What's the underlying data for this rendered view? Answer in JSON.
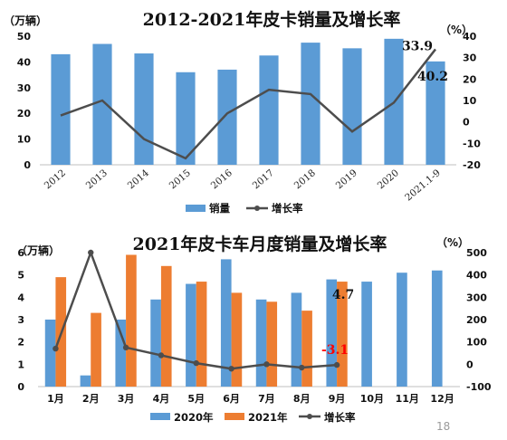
{
  "page_number": "18",
  "colors": {
    "bar_blue": "#5b9bd5",
    "bar_orange": "#ed7d31",
    "line": "#4d4d4d",
    "neg_label": "#ff0000",
    "label": "#111111"
  },
  "chart_data": [
    {
      "type": "bar",
      "title": "2012-2021年皮卡销量及增长率",
      "left_unit": "（万辆）",
      "right_unit": "（%）",
      "categories": [
        "2012",
        "2013",
        "2014",
        "2015",
        "2016",
        "2017",
        "2018",
        "2019",
        "2020",
        "2021.1-9"
      ],
      "left_ticks": [
        "0",
        "10",
        "20",
        "30",
        "40",
        "50"
      ],
      "right_ticks": [
        "-20",
        "-10",
        "0",
        "10",
        "20",
        "30",
        "40"
      ],
      "ylim_left": [
        0,
        50
      ],
      "ylim_right": [
        -20,
        40
      ],
      "series": [
        {
          "name": "销量",
          "kind": "bar",
          "axis": "left",
          "values": [
            43,
            47,
            43.3,
            36,
            37,
            42.5,
            47.5,
            45.3,
            49,
            40.2
          ]
        },
        {
          "name": "增长率",
          "kind": "line",
          "axis": "right",
          "values": [
            3,
            10,
            -8,
            -17,
            4,
            15,
            13,
            -4.5,
            9,
            33.9
          ]
        }
      ],
      "data_labels": [
        {
          "text": "33.9",
          "series": "增长率",
          "index": 9
        },
        {
          "text": "40.2",
          "series": "销量",
          "index": 9
        }
      ],
      "legend_position": "bottom"
    },
    {
      "type": "bar",
      "title": "2021年皮卡车月度销量及增长率",
      "left_unit": "（万辆）",
      "right_unit": "（%）",
      "categories": [
        "1月",
        "2月",
        "3月",
        "4月",
        "5月",
        "6月",
        "7月",
        "8月",
        "9月",
        "10月",
        "11月",
        "12月"
      ],
      "left_ticks": [
        "0",
        "1",
        "2",
        "3",
        "4",
        "5",
        "6"
      ],
      "right_ticks": [
        "-100",
        "0",
        "100",
        "200",
        "300",
        "400",
        "500"
      ],
      "ylim_left": [
        0,
        6
      ],
      "ylim_right": [
        -100,
        500
      ],
      "series": [
        {
          "name": "2020年",
          "kind": "bar",
          "axis": "left",
          "values": [
            3.0,
            0.5,
            3.0,
            3.9,
            4.6,
            5.7,
            3.9,
            4.2,
            4.8,
            4.7,
            5.1,
            5.2
          ]
        },
        {
          "name": "2021年",
          "kind": "bar",
          "axis": "left",
          "values": [
            4.9,
            3.3,
            5.9,
            5.4,
            4.7,
            4.2,
            3.8,
            3.4,
            4.7,
            null,
            null,
            null
          ]
        },
        {
          "name": "增长率",
          "kind": "line",
          "axis": "right",
          "values": [
            70,
            500,
            75,
            40,
            5,
            -20,
            0,
            -15,
            -3.1,
            null,
            null,
            null
          ]
        }
      ],
      "data_labels": [
        {
          "text": "4.7",
          "series": "2021年",
          "index": 8
        },
        {
          "text": "-3.1",
          "series": "增长率",
          "index": 8
        }
      ],
      "legend_position": "bottom"
    }
  ]
}
